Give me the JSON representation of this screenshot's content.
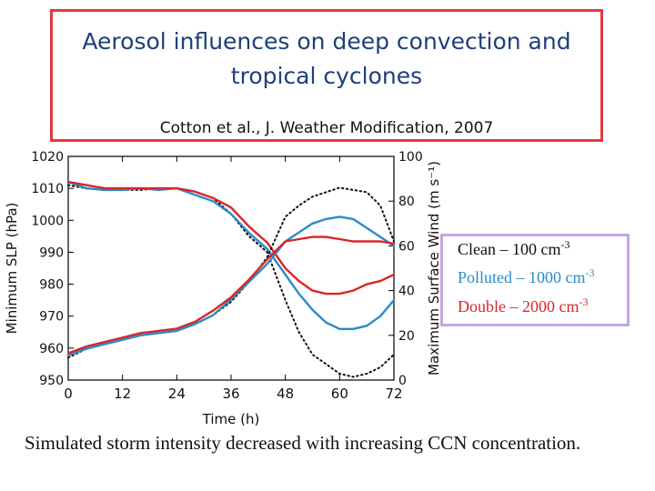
{
  "slide": {
    "title": "Aerosol influences on deep convection and tropical cyclones",
    "citation": "Cotton et al., J. Weather Modification, 2007",
    "caption": "Simulated storm intensity decreased with increasing CCN concentration."
  },
  "legend": [
    {
      "label": "Clean – 100 cm",
      "exp": "-3",
      "color": "#111111"
    },
    {
      "label": "Polluted – 1000 cm",
      "exp": "-3",
      "color": "#2a8cc8"
    },
    {
      "label": "Double – 2000 cm",
      "exp": "-3",
      "color": "#d8262a"
    }
  ],
  "chart_data": {
    "type": "line",
    "xlabel": "Time (h)",
    "ylabel_left": "Minimum SLP (hPa)",
    "ylabel_right": "Maximum Surface Wind (m s⁻¹)",
    "xlim": [
      0,
      72
    ],
    "ylim_left": [
      950,
      1020
    ],
    "ylim_right": [
      0,
      100
    ],
    "xticks": [
      "0",
      "12",
      "24",
      "36",
      "48",
      "60",
      "72"
    ],
    "yticks_left": [
      "950",
      "960",
      "970",
      "980",
      "990",
      "1000",
      "1010",
      "1020"
    ],
    "yticks_right": [
      "0",
      "20",
      "40",
      "60",
      "80",
      "100"
    ],
    "series": [
      {
        "name": "Clean SLP",
        "axis": "left",
        "style": "dotted",
        "color": "#111111",
        "x": [
          0,
          4,
          8,
          12,
          16,
          20,
          24,
          28,
          32,
          36,
          40,
          44,
          48,
          51,
          54,
          57,
          60,
          63,
          66,
          69,
          72
        ],
        "y": [
          1011,
          1010,
          1009.5,
          1009.5,
          1009.5,
          1010,
          1010,
          1009,
          1007,
          1002,
          995,
          990,
          975,
          965,
          958,
          955,
          952,
          951,
          952,
          954,
          958
        ]
      },
      {
        "name": "Polluted SLP",
        "axis": "left",
        "style": "solid",
        "color": "#2a8cc8",
        "x": [
          0,
          4,
          8,
          12,
          16,
          20,
          24,
          28,
          32,
          36,
          40,
          44,
          48,
          51,
          54,
          57,
          60,
          63,
          66,
          69,
          72
        ],
        "y": [
          1012,
          1010,
          1009.5,
          1009.5,
          1010,
          1009.5,
          1010,
          1008,
          1006,
          1002,
          996,
          991,
          983,
          977,
          972,
          968,
          966,
          966,
          967,
          970,
          975
        ]
      },
      {
        "name": "Double SLP",
        "axis": "left",
        "style": "solid",
        "color": "#d8262a",
        "x": [
          0,
          4,
          8,
          12,
          16,
          20,
          24,
          28,
          32,
          36,
          40,
          44,
          48,
          51,
          54,
          57,
          60,
          63,
          66,
          69,
          72
        ],
        "y": [
          1012,
          1011,
          1010,
          1010,
          1010,
          1010,
          1010,
          1009,
          1007,
          1004,
          998,
          993,
          985,
          981,
          978,
          977,
          977,
          978,
          980,
          981,
          983
        ]
      },
      {
        "name": "Clean Wind",
        "axis": "right",
        "style": "dotted",
        "color": "#111111",
        "x": [
          0,
          4,
          8,
          12,
          16,
          20,
          24,
          28,
          32,
          36,
          40,
          44,
          48,
          51,
          54,
          57,
          60,
          63,
          66,
          69,
          72
        ],
        "y": [
          10,
          14,
          16,
          18,
          20,
          21,
          22,
          25,
          29,
          35,
          44,
          55,
          73,
          78,
          82,
          84,
          86,
          85,
          84,
          78,
          62
        ]
      },
      {
        "name": "Polluted Wind",
        "axis": "right",
        "style": "solid",
        "color": "#2a8cc8",
        "x": [
          0,
          4,
          8,
          12,
          16,
          20,
          24,
          28,
          32,
          36,
          40,
          44,
          48,
          51,
          54,
          57,
          60,
          63,
          66,
          69,
          72
        ],
        "y": [
          11,
          14,
          16,
          18,
          20,
          21,
          22,
          25,
          29,
          36,
          44,
          52,
          62,
          66,
          70,
          72,
          73,
          72,
          68,
          64,
          60
        ]
      },
      {
        "name": "Double Wind",
        "axis": "right",
        "style": "solid",
        "color": "#d8262a",
        "x": [
          0,
          4,
          8,
          12,
          16,
          20,
          24,
          28,
          32,
          36,
          40,
          44,
          48,
          51,
          54,
          57,
          60,
          63,
          66,
          69,
          72
        ],
        "y": [
          12,
          15,
          17,
          19,
          21,
          22,
          23,
          26,
          31,
          37,
          45,
          54,
          62,
          63,
          64,
          64,
          63,
          62,
          62,
          62,
          61
        ]
      }
    ]
  }
}
